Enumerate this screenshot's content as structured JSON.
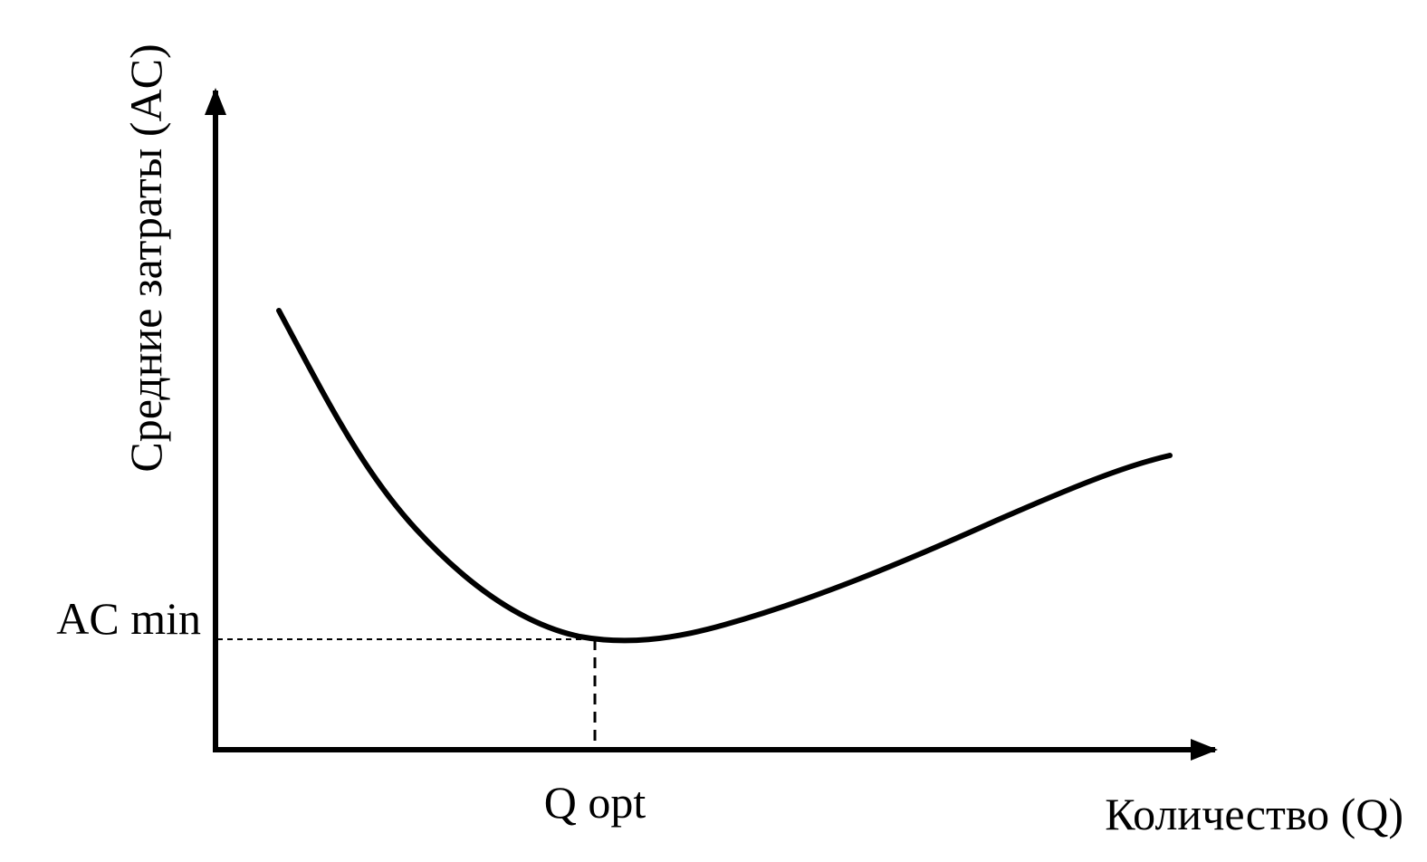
{
  "diagram": {
    "y_axis_label": "Средние затраты (AC)",
    "x_axis_label": "Количество (Q)",
    "min_label": "AC min",
    "opt_label": "Q opt"
  }
}
